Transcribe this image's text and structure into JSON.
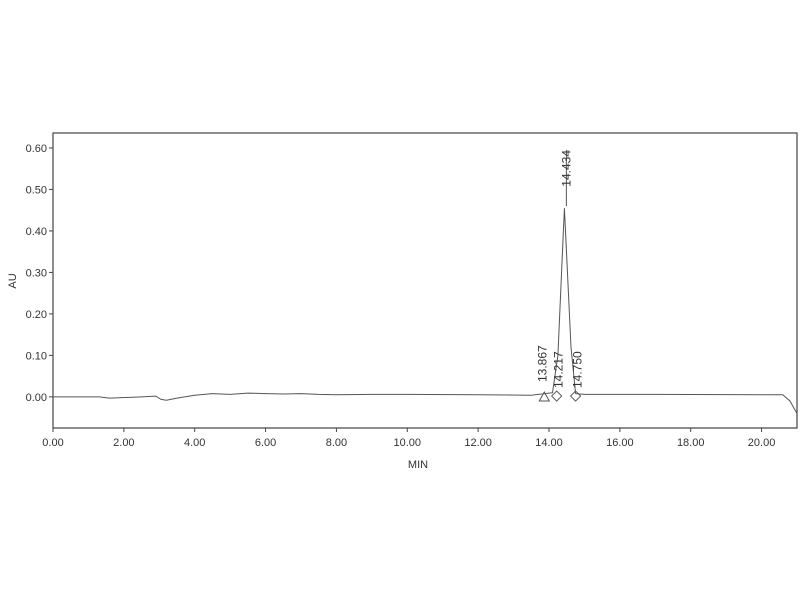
{
  "chart_data": {
    "type": "line",
    "title": "",
    "xlabel": "MIN",
    "ylabel": "AU",
    "xlim": [
      0,
      21
    ],
    "ylim": [
      -0.075,
      0.636
    ],
    "grid": false,
    "x_ticks": [
      0,
      2,
      4,
      6,
      8,
      10,
      12,
      14,
      16,
      18,
      20
    ],
    "x_tick_labels": [
      "0.00",
      "2.00",
      "4.00",
      "6.00",
      "8.00",
      "10.00",
      "12.00",
      "14.00",
      "16.00",
      "18.00",
      "20.00"
    ],
    "y_ticks": [
      0,
      0.1,
      0.2,
      0.3,
      0.4,
      0.5,
      0.6
    ],
    "y_tick_labels": [
      "0.00",
      "0.10",
      "0.20",
      "0.30",
      "0.40",
      "0.50",
      "0.60"
    ],
    "series": [
      {
        "color": "#555555",
        "x": [
          0,
          1.3,
          1.6,
          2.5,
          2.9,
          3.05,
          3.2,
          3.5,
          4.0,
          4.5,
          5.0,
          5.5,
          6.0,
          6.5,
          7.0,
          7.5,
          8.0,
          9.0,
          10.0,
          12.0,
          13.5,
          14.1,
          14.25,
          14.434,
          14.62,
          14.75,
          15.0,
          17.0,
          20.6,
          20.8,
          21.0
        ],
        "y": [
          0.0,
          0.0,
          -0.003,
          0.0,
          0.002,
          -0.006,
          -0.008,
          -0.003,
          0.004,
          0.008,
          0.006,
          0.009,
          0.008,
          0.007,
          0.008,
          0.006,
          0.005,
          0.006,
          0.006,
          0.005,
          0.004,
          0.01,
          0.1,
          0.455,
          0.12,
          0.008,
          0.006,
          0.006,
          0.005,
          -0.01,
          -0.04
        ]
      }
    ],
    "peaks": [
      {
        "rt": 13.867,
        "label": "13.867",
        "marker": "triangle"
      },
      {
        "rt": 14.217,
        "label": "14.217",
        "marker": "diamond"
      },
      {
        "rt": 14.434,
        "label": "14.434",
        "marker": "none"
      },
      {
        "rt": 14.75,
        "label": "14.750",
        "marker": "diamond"
      }
    ]
  }
}
